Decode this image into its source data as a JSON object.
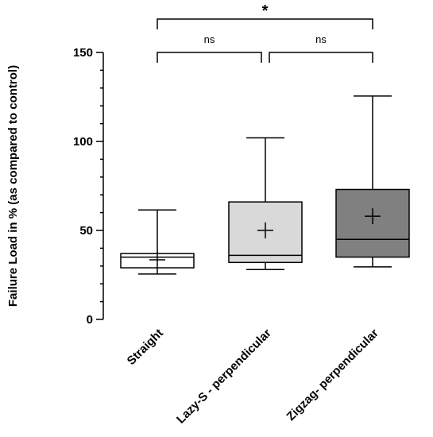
{
  "chart_data": {
    "type": "box",
    "title": "",
    "xlabel": "",
    "ylabel": "Failure Load in % (as compared to control)",
    "ylim": [
      0,
      150
    ],
    "yticks": [
      0,
      50,
      100,
      150
    ],
    "ytick_labels": [
      "0",
      "50",
      "100",
      "150"
    ],
    "y_minor_tick_step": 10,
    "grid": false,
    "legend": "none",
    "categories": [
      "Straight",
      "Lazy-S - perpendicular",
      "Zigzag- perpendicular"
    ],
    "boxes": [
      {
        "category": "Straight",
        "min": 25.5,
        "q1": 29,
        "median": 35,
        "q3": 37,
        "max": 61.5,
        "mean": 33.5,
        "fill": "#ffffff"
      },
      {
        "category": "Lazy-S - perpendicular",
        "min": 28,
        "q1": 32,
        "median": 36,
        "q3": 66,
        "max": 102,
        "mean": 50,
        "fill": "#d9d9d9"
      },
      {
        "category": "Zigzag- perpendicular",
        "min": 29.5,
        "q1": 35,
        "median": 45,
        "q3": 73,
        "max": 125.5,
        "mean": 58,
        "fill": "#808080"
      }
    ],
    "significance": [
      {
        "from": 0,
        "to": 1,
        "label": "ns",
        "level": 1
      },
      {
        "from": 1,
        "to": 2,
        "label": "ns",
        "level": 1
      },
      {
        "from": 0,
        "to": 2,
        "label": "*",
        "level": 2
      }
    ]
  }
}
